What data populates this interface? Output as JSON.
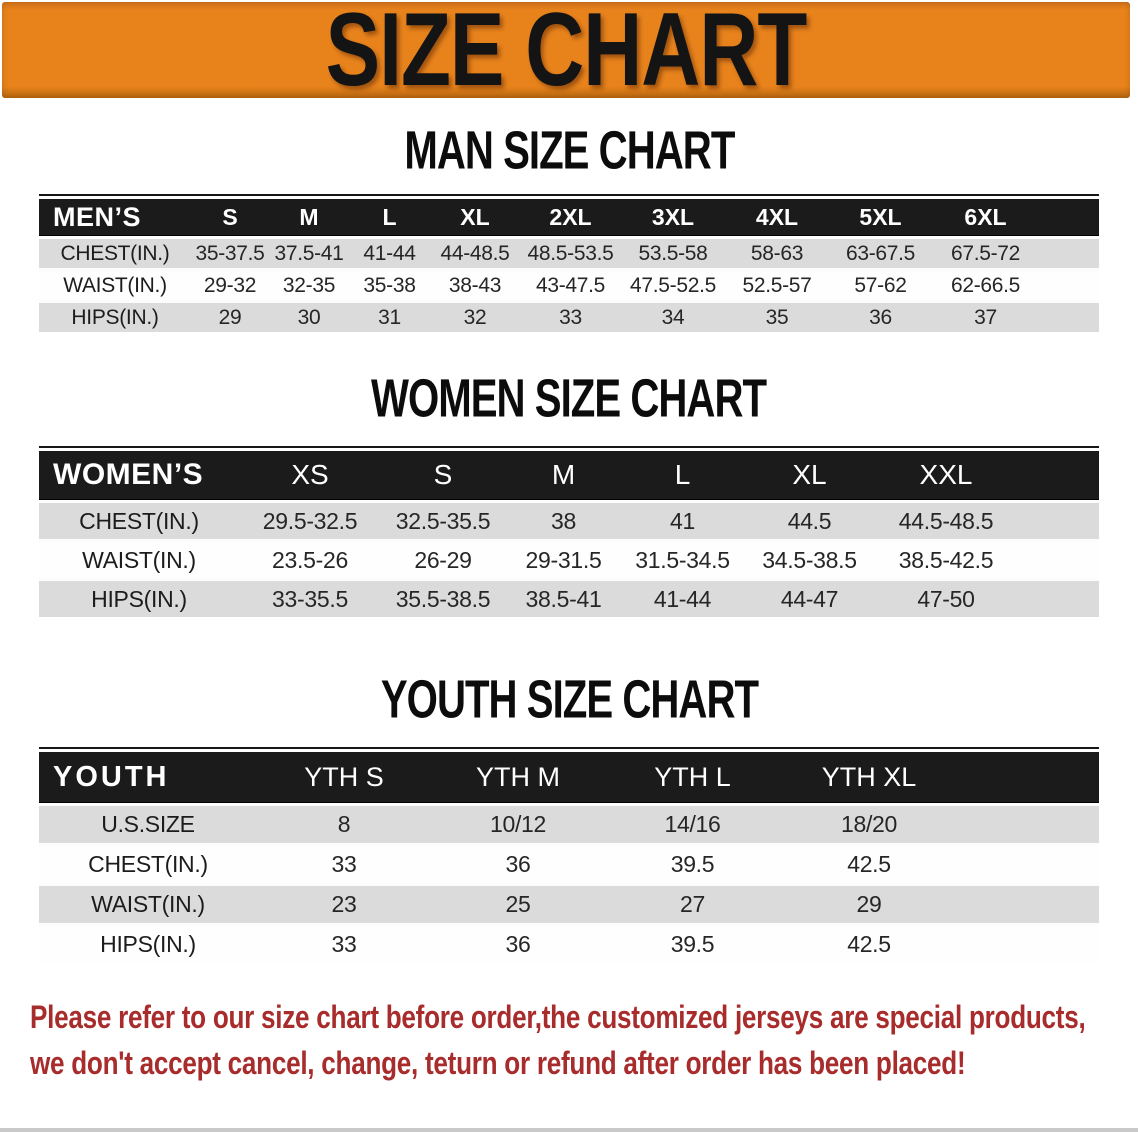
{
  "banner": {
    "title": "SIZE CHART"
  },
  "colors": {
    "banner_orange": "#E8831C",
    "header_bar": "#1B1B1B",
    "row_stripe": "#DBDBDB",
    "footnote_red": "#A82C2C"
  },
  "sections": [
    {
      "id": "men",
      "heading": "MAN SIZE CHART",
      "header_label": "MEN’S",
      "columns": [
        "S",
        "M",
        "L",
        "XL",
        "2XL",
        "3XL",
        "4XL",
        "5XL",
        "6XL"
      ],
      "rows": [
        {
          "label": "CHEST(IN.)",
          "values": [
            "35-37.5",
            "37.5-41",
            "41-44",
            "44-48.5",
            "48.5-53.5",
            "53.5-58",
            "58-63",
            "63-67.5",
            "67.5-72"
          ]
        },
        {
          "label": "WAIST(IN.)",
          "values": [
            "29-32",
            "32-35",
            "35-38",
            "38-43",
            "43-47.5",
            "47.5-52.5",
            "52.5-57",
            "57-62",
            "62-66.5"
          ]
        },
        {
          "label": "HIPS(IN.)",
          "values": [
            "29",
            "30",
            "31",
            "32",
            "33",
            "34",
            "35",
            "36",
            "37"
          ]
        }
      ]
    },
    {
      "id": "women",
      "heading": "WOMEN SIZE CHART",
      "header_label": "WOMEN’S",
      "columns": [
        "XS",
        "S",
        "M",
        "L",
        "XL",
        "XXL"
      ],
      "rows": [
        {
          "label": "CHEST(IN.)",
          "values": [
            "29.5-32.5",
            "32.5-35.5",
            "38",
            "41",
            "44.5",
            "44.5-48.5"
          ]
        },
        {
          "label": "WAIST(IN.)",
          "values": [
            "23.5-26",
            "26-29",
            "29-31.5",
            "31.5-34.5",
            "34.5-38.5",
            "38.5-42.5"
          ]
        },
        {
          "label": "HIPS(IN.)",
          "values": [
            "33-35.5",
            "35.5-38.5",
            "38.5-41",
            "41-44",
            "44-47",
            "47-50"
          ]
        }
      ]
    },
    {
      "id": "youth",
      "heading": "YOUTH SIZE CHART",
      "header_label": "YOUTH",
      "columns": [
        "YTH S",
        "YTH M",
        "YTH L",
        "YTH XL"
      ],
      "rows": [
        {
          "label": "U.S.SIZE",
          "values": [
            "8",
            "10/12",
            "14/16",
            "18/20"
          ]
        },
        {
          "label": "CHEST(IN.)",
          "values": [
            "33",
            "36",
            "39.5",
            "42.5"
          ]
        },
        {
          "label": "WAIST(IN.)",
          "values": [
            "23",
            "25",
            "27",
            "29"
          ]
        },
        {
          "label": "HIPS(IN.)",
          "values": [
            "33",
            "36",
            "39.5",
            "42.5"
          ]
        }
      ]
    }
  ],
  "footnote": {
    "lines": [
      "Please refer to our size chart before order,the customized jerseys are special products,",
      "we don't accept cancel, change, teturn or refund after order has been placed!"
    ]
  }
}
